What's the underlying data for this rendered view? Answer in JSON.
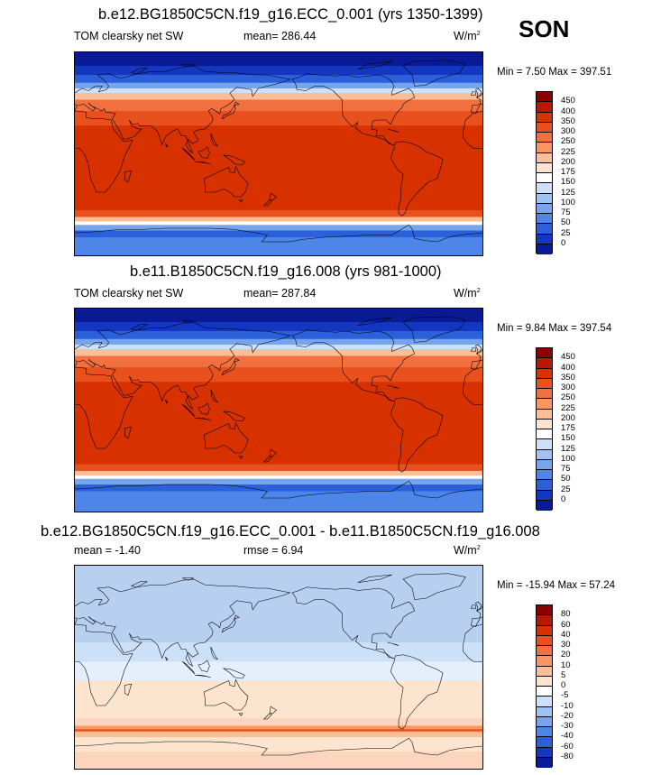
{
  "season": "SON",
  "panels": [
    {
      "title": "b.e12.BG1850C5CN.f19_g16.ECC_0.001 (yrs 1350-1399)",
      "left_label": "TOM clearsky net SW",
      "mean_label": "mean= 286.44",
      "units": "W/m",
      "units_exp": "2",
      "minmax": "Min =   7.50 Max = 397.51",
      "colorbar_labels": [
        "450",
        "400",
        "350",
        "300",
        "250",
        "225",
        "200",
        "175",
        "150",
        "125",
        "100",
        "75",
        "50",
        "25",
        "0"
      ],
      "colorbar_colors": [
        "#8e0000",
        "#b81800",
        "#d83100",
        "#e8501e",
        "#f27040",
        "#f8965f",
        "#fbbe97",
        "#fde4cf",
        "#ffffff",
        "#cce1f8",
        "#9fc4f3",
        "#74a5ee",
        "#4d85e8",
        "#2c60da",
        "#1437c2",
        "#0a1a95"
      ],
      "bands": [
        {
          "lat_top": 90,
          "color": "#0a1a95"
        },
        {
          "lat_top": 78,
          "color": "#1437c2"
        },
        {
          "lat_top": 70,
          "color": "#2c60da"
        },
        {
          "lat_top": 63,
          "color": "#74a5ee"
        },
        {
          "lat_top": 58,
          "color": "#cce1f8"
        },
        {
          "lat_top": 54,
          "color": "#fbbe97"
        },
        {
          "lat_top": 48,
          "color": "#f27040"
        },
        {
          "lat_top": 38,
          "color": "#e8501e"
        },
        {
          "lat_top": 25,
          "color": "#d83100"
        },
        {
          "lat_top": -50,
          "color": "#e8501e"
        },
        {
          "lat_top": -56,
          "color": "#fbbe97"
        },
        {
          "lat_top": -60,
          "color": "#ffffff"
        },
        {
          "lat_top": -63,
          "color": "#74a5ee"
        },
        {
          "lat_top": -68,
          "color": "#2c60da"
        },
        {
          "lat_top": -74,
          "color": "#4d85e8"
        }
      ]
    },
    {
      "title": "b.e11.B1850C5CN.f19_g16.008 (yrs 981-1000)",
      "left_label": "TOM clearsky net SW",
      "mean_label": "mean= 287.84",
      "units": "W/m",
      "units_exp": "2",
      "minmax": "Min =   9.84 Max = 397.54",
      "colorbar_labels": [
        "450",
        "400",
        "350",
        "300",
        "250",
        "225",
        "200",
        "175",
        "150",
        "125",
        "100",
        "75",
        "50",
        "25",
        "0"
      ],
      "colorbar_colors": [
        "#8e0000",
        "#b81800",
        "#d83100",
        "#e8501e",
        "#f27040",
        "#f8965f",
        "#fbbe97",
        "#fde4cf",
        "#ffffff",
        "#cce1f8",
        "#9fc4f3",
        "#74a5ee",
        "#4d85e8",
        "#2c60da",
        "#1437c2",
        "#0a1a95"
      ],
      "bands": [
        {
          "lat_top": 90,
          "color": "#0a1a95"
        },
        {
          "lat_top": 78,
          "color": "#1437c2"
        },
        {
          "lat_top": 70,
          "color": "#2c60da"
        },
        {
          "lat_top": 63,
          "color": "#74a5ee"
        },
        {
          "lat_top": 58,
          "color": "#cce1f8"
        },
        {
          "lat_top": 54,
          "color": "#fbbe97"
        },
        {
          "lat_top": 48,
          "color": "#f27040"
        },
        {
          "lat_top": 38,
          "color": "#e8501e"
        },
        {
          "lat_top": 25,
          "color": "#d83100"
        },
        {
          "lat_top": -48,
          "color": "#e8501e"
        },
        {
          "lat_top": -54,
          "color": "#fbbe97"
        },
        {
          "lat_top": -58,
          "color": "#ffffff"
        },
        {
          "lat_top": -61,
          "color": "#74a5ee"
        },
        {
          "lat_top": -66,
          "color": "#2c60da"
        },
        {
          "lat_top": -72,
          "color": "#4d85e8"
        }
      ]
    },
    {
      "title": "b.e12.BG1850C5CN.f19_g16.ECC_0.001 - b.e11.B1850C5CN.f19_g16.008",
      "left_label": "mean =  -1.40",
      "mean_label": "rmse =   6.94",
      "units": "W/m",
      "units_exp": "2",
      "minmax": "Min = -15.94 Max =  57.24",
      "colorbar_labels": [
        "80",
        "60",
        "40",
        "30",
        "20",
        "10",
        "5",
        "0",
        "-5",
        "-10",
        "-20",
        "-30",
        "-40",
        "-60",
        "-80"
      ],
      "colorbar_colors": [
        "#8e0000",
        "#b81800",
        "#d83100",
        "#e8501e",
        "#f27040",
        "#f8965f",
        "#fbbe97",
        "#fde4cf",
        "#ffffff",
        "#cce1f8",
        "#9fc4f3",
        "#74a5ee",
        "#4d85e8",
        "#2c60da",
        "#1437c2",
        "#0a1a95"
      ],
      "bands": [
        {
          "lat_top": 90,
          "color": "#b7d0f0"
        },
        {
          "lat_top": 22,
          "color": "#cce1f8"
        },
        {
          "lat_top": 5,
          "color": "#e4effb"
        },
        {
          "lat_top": -12,
          "color": "#fde4cf"
        },
        {
          "lat_top": -45,
          "color": "#fbd5bd"
        },
        {
          "lat_top": -52,
          "color": "#f8965f"
        },
        {
          "lat_top": -55,
          "color": "#e8501e"
        },
        {
          "lat_top": -57,
          "color": "#fbbe97"
        },
        {
          "lat_top": -62,
          "color": "#fde4cf"
        },
        {
          "lat_top": -75,
          "color": "#fbd5bd"
        }
      ]
    }
  ]
}
